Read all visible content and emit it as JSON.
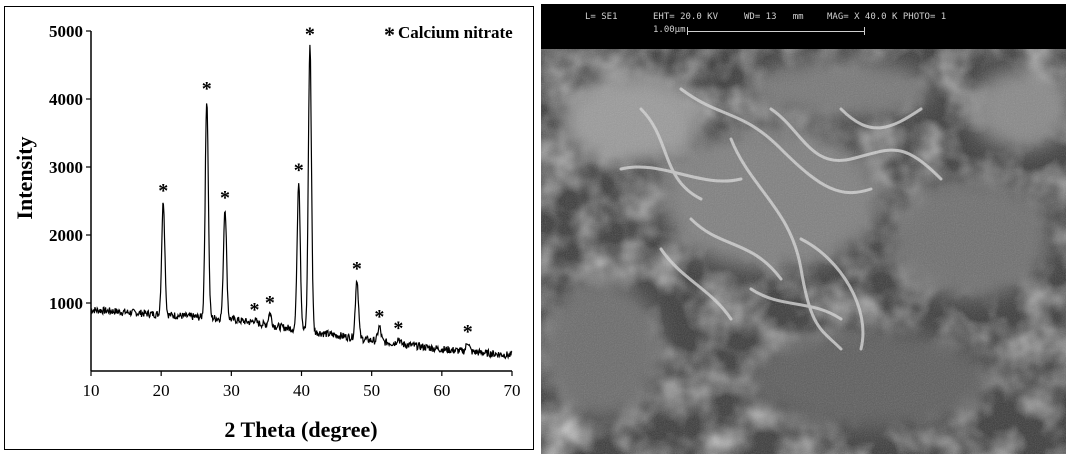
{
  "chart_data": {
    "type": "line",
    "title": "",
    "xlabel": "2 Theta (degree)",
    "ylabel": "Intensity",
    "xlim": [
      10,
      70
    ],
    "ylim": [
      0,
      5000
    ],
    "x_ticks": [
      10,
      20,
      30,
      40,
      50,
      60,
      70
    ],
    "y_ticks": [
      1000,
      2000,
      3000,
      4000,
      5000
    ],
    "legend": {
      "marker": "*",
      "label": "Calcium nitrate",
      "placement": "top-right"
    },
    "baseline": {
      "x": [
        10,
        20,
        30,
        40,
        50,
        60,
        70
      ],
      "y": [
        900,
        830,
        760,
        600,
        450,
        320,
        230
      ]
    },
    "peaks": [
      {
        "x": 20.3,
        "y": 2500,
        "marked": true
      },
      {
        "x": 26.5,
        "y": 4000,
        "marked": true
      },
      {
        "x": 29.1,
        "y": 2400,
        "marked": true
      },
      {
        "x": 33.3,
        "y": 750,
        "marked": true
      },
      {
        "x": 35.5,
        "y": 850,
        "marked": true
      },
      {
        "x": 39.6,
        "y": 2800,
        "marked": true
      },
      {
        "x": 41.2,
        "y": 4800,
        "marked": true
      },
      {
        "x": 47.9,
        "y": 1350,
        "marked": true
      },
      {
        "x": 51.1,
        "y": 650,
        "marked": true
      },
      {
        "x": 53.8,
        "y": 480,
        "marked": true
      },
      {
        "x": 63.7,
        "y": 430,
        "marked": true
      }
    ]
  },
  "sem": {
    "header": {
      "detector": "L= SE1",
      "eht": "EHT= 20.0 KV",
      "wd": "WD= 13   mm",
      "mag": "MAG= X 40.0 K PHOTO= 1"
    },
    "scale_label": "1.00µm"
  }
}
